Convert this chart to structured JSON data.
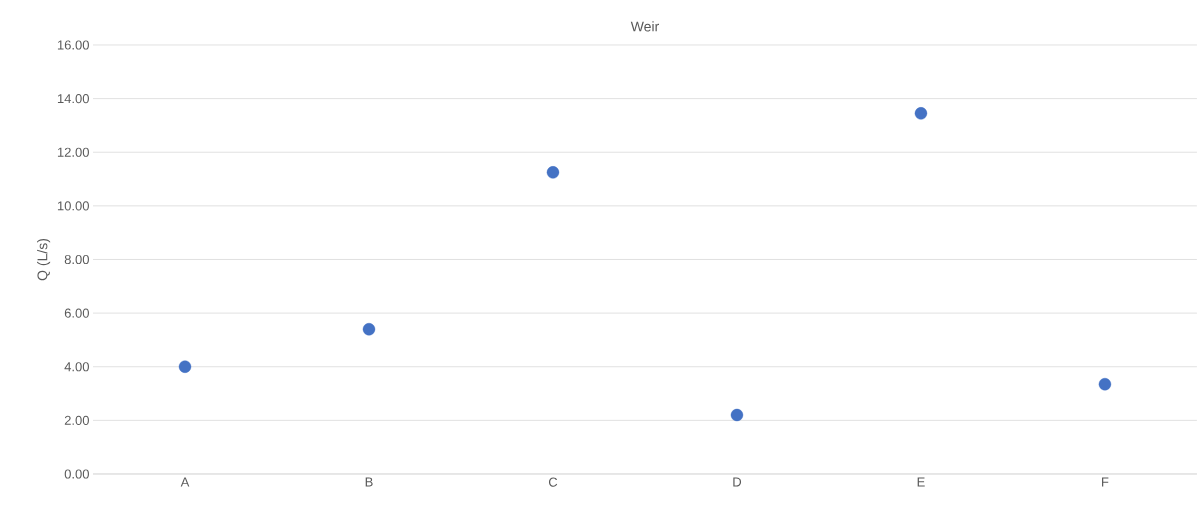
{
  "chart_data": {
    "type": "scatter",
    "title": "Weir",
    "ylabel": "Q (L/s)",
    "categories": [
      "A",
      "B",
      "C",
      "D",
      "E",
      "F"
    ],
    "values": [
      4.0,
      5.4,
      11.25,
      2.2,
      13.45,
      3.35
    ],
    "color": "#4472c4",
    "marker": "circle",
    "grid": "y",
    "ylim": [
      0,
      16
    ],
    "yticks": [
      {
        "value": 0,
        "label": "0.00"
      },
      {
        "value": 2,
        "label": "2.00"
      },
      {
        "value": 4,
        "label": "4.00"
      },
      {
        "value": 6,
        "label": "6.00"
      },
      {
        "value": 8,
        "label": "8.00"
      },
      {
        "value": 10,
        "label": "10.00"
      },
      {
        "value": 12,
        "label": "12.00"
      },
      {
        "value": 14,
        "label": "14.00"
      },
      {
        "value": 16,
        "label": "16.00"
      }
    ]
  }
}
